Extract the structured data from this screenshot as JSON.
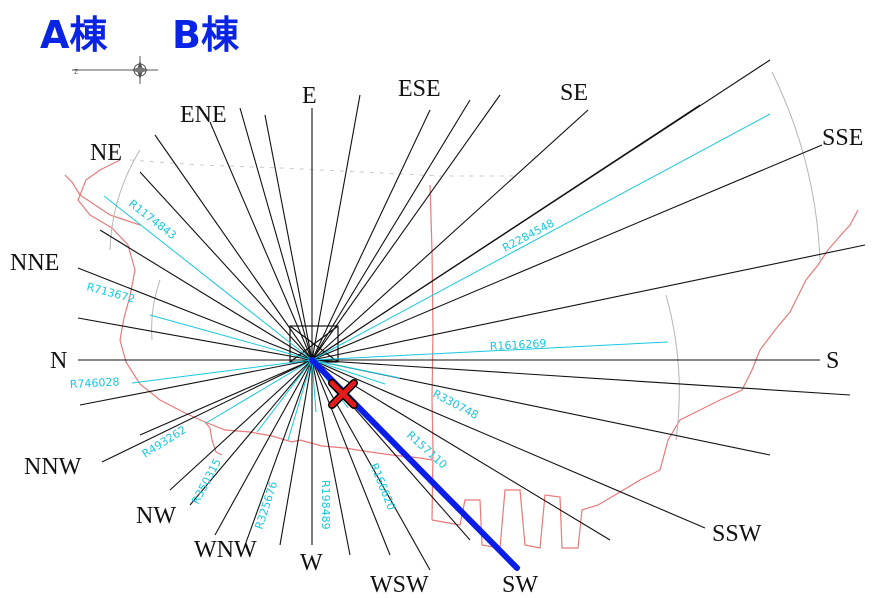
{
  "buildings": {
    "a": "A棟",
    "b": "B棟"
  },
  "colors": {
    "ray": "#111111",
    "radius": "#18c8e0",
    "boundary": "#e87a7a",
    "highlight_ray": "#0a1ee8",
    "marker": "#e21b1b",
    "building_label": "#0a24e6"
  },
  "directions": [
    {
      "label": "E"
    },
    {
      "label": "ESE"
    },
    {
      "label": "SE"
    },
    {
      "label": "SSE"
    },
    {
      "label": "S"
    },
    {
      "label": "SSW"
    },
    {
      "label": "SW"
    },
    {
      "label": "WSW"
    },
    {
      "label": "W"
    },
    {
      "label": "WNW"
    },
    {
      "label": "NW"
    },
    {
      "label": "NNW"
    },
    {
      "label": "N"
    },
    {
      "label": "NNE"
    },
    {
      "label": "NE"
    },
    {
      "label": "ENE"
    }
  ],
  "radii": [
    {
      "label": "R1174843"
    },
    {
      "label": "R713672"
    },
    {
      "label": "R746028"
    },
    {
      "label": "R493262"
    },
    {
      "label": "R350315"
    },
    {
      "label": "R325676"
    },
    {
      "label": "R198489"
    },
    {
      "label": "R166620"
    },
    {
      "label": "R157110"
    },
    {
      "label": "R330748"
    },
    {
      "label": "R1616269"
    },
    {
      "label": "R2284548"
    }
  ],
  "highlight": {
    "direction": "SW",
    "marker_icon": "cross-icon"
  }
}
